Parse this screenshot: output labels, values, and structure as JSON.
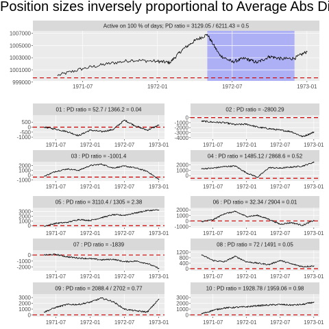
{
  "title": "Position sizes inversely proportional to Average Abs Diff",
  "colors": {
    "panel_bg": "#ebebeb",
    "strip_bg": "#d9d9d9",
    "grid": "#ffffff",
    "line": "#000000",
    "zero_line": "#cc0000",
    "highlight": "#aeb0f5"
  },
  "chart_data": [
    {
      "type": "line",
      "strip": "Active on 100 % of days; PD ratio =  3129.05 / 6211.43 = 0.5",
      "x_ticks": [
        "1971-07",
        "1972-01",
        "1972-07",
        "1973-01"
      ],
      "y_ticks": [
        "999000",
        "1001000",
        "1003000",
        "1005000",
        "1007000"
      ],
      "y_tick_values": [
        999000,
        1001000,
        1003000,
        1005000,
        1007000
      ],
      "ylim": [
        999200,
        1007400
      ],
      "reference_line": 999700,
      "highlight_range": [
        "1972-05",
        "1972-12"
      ],
      "x": [
        "1971-05",
        "1971-07",
        "1971-09",
        "1971-11",
        "1972-01",
        "1972-02",
        "1972-03",
        "1972-04",
        "1972-05",
        "1972-06",
        "1972-07",
        "1972-08",
        "1972-09",
        "1972-10",
        "1972-11",
        "1972-12",
        "1973-01"
      ],
      "values": [
        1000100,
        1001200,
        1002000,
        1002600,
        1002400,
        1002200,
        1004300,
        1005800,
        1006800,
        1003400,
        1002300,
        1002900,
        1002200,
        1003200,
        1002800,
        1002900,
        1004000
      ]
    },
    {
      "type": "line",
      "strip": "01 : PD ratio =  52.7 / 1366.2 = 0.04",
      "x_ticks": [
        "1971-07",
        "1972-01",
        "1972-07",
        "1973-01"
      ],
      "y_ticks": [
        "-1000",
        "-500",
        "0",
        "500"
      ],
      "y_tick_values": [
        -1000,
        -500,
        0,
        500
      ],
      "ylim": [
        -1200,
        1200
      ],
      "reference_line": 0,
      "x": [
        "1971-05",
        "1971-07",
        "1971-09",
        "1971-11",
        "1972-01",
        "1972-03",
        "1972-05",
        "1972-07",
        "1972-09",
        "1972-11",
        "1973-01"
      ],
      "values": [
        0,
        -200,
        -450,
        -850,
        -300,
        -450,
        -250,
        700,
        100,
        -300,
        200
      ]
    },
    {
      "type": "line",
      "strip": "02 : PD ratio =  -2800.29",
      "x_ticks": [
        "1971-07",
        "1972-01",
        "1972-07",
        "1973-01"
      ],
      "y_ticks": [
        "-4000",
        "-3000",
        "-2000",
        "-1000",
        "0"
      ],
      "y_tick_values": [
        -4000,
        -3000,
        -2000,
        -1000,
        0
      ],
      "ylim": [
        -4300,
        500
      ],
      "reference_line": 0,
      "x": [
        "1971-05",
        "1971-07",
        "1971-09",
        "1971-11",
        "1972-01",
        "1972-03",
        "1972-05",
        "1972-07",
        "1972-09",
        "1972-11",
        "1973-01"
      ],
      "values": [
        -700,
        -900,
        -1000,
        -1400,
        -1300,
        -1900,
        -2200,
        -2500,
        -2800,
        -3800,
        -2900
      ]
    },
    {
      "type": "line",
      "strip": "03 : PD ratio =  -1001.4",
      "x_ticks": [
        "1971-07",
        "1972-01",
        "1972-07",
        "1973-01"
      ],
      "y_ticks": [
        "-1000",
        "0",
        "1000",
        "2000"
      ],
      "y_tick_values": [
        -1000,
        0,
        1000,
        2000
      ],
      "ylim": [
        -1200,
        2800
      ],
      "reference_line": -400,
      "x": [
        "1971-05",
        "1971-07",
        "1971-09",
        "1971-11",
        "1972-01",
        "1972-03",
        "1972-05",
        "1972-07",
        "1972-09",
        "1972-11",
        "1973-01"
      ],
      "values": [
        -200,
        800,
        1300,
        1000,
        2000,
        2300,
        1500,
        1900,
        1500,
        800,
        -900
      ]
    },
    {
      "type": "line",
      "strip": "04 : PD ratio =  1485.12 / 2868.6 = 0.52",
      "x_ticks": [
        "1971-07",
        "1972-01",
        "1972-07",
        "1973-01"
      ],
      "y_ticks": [
        "0",
        "1000",
        "2000"
      ],
      "y_tick_values": [
        0,
        1000,
        2000
      ],
      "ylim": [
        -1000,
        2600
      ],
      "reference_line": -500,
      "x": [
        "1971-05",
        "1971-07",
        "1971-09",
        "1971-11",
        "1972-01",
        "1972-03",
        "1972-05",
        "1972-07",
        "1972-09",
        "1972-11",
        "1973-01"
      ],
      "values": [
        1300,
        1400,
        1700,
        1800,
        500,
        -300,
        1500,
        1400,
        1600,
        1800,
        2500
      ]
    },
    {
      "type": "line",
      "strip": "05 : PD ratio =  3110.4 / 1305 = 2.38",
      "x_ticks": [
        "1971-07",
        "1972-01",
        "1972-07",
        "1973-01"
      ],
      "y_ticks": [
        "0",
        "1000",
        "2000",
        "3000"
      ],
      "y_tick_values": [
        0,
        1000,
        2000,
        3000
      ],
      "ylim": [
        -400,
        3800
      ],
      "reference_line": 0,
      "x": [
        "1971-05",
        "1971-07",
        "1971-09",
        "1971-11",
        "1972-01",
        "1972-03",
        "1972-05",
        "1972-07",
        "1972-09",
        "1972-11",
        "1973-01"
      ],
      "values": [
        -100,
        500,
        700,
        1300,
        1100,
        1700,
        2300,
        2200,
        2700,
        3200,
        3300
      ]
    },
    {
      "type": "line",
      "strip": "06 : PD ratio =  32.34 / 2904 = 0.01",
      "x_ticks": [
        "1971-07",
        "1972-01",
        "1972-07",
        "1973-01"
      ],
      "y_ticks": [
        "-1000",
        "0",
        "1000",
        "2000"
      ],
      "y_tick_values": [
        -1000,
        0,
        1000,
        2000
      ],
      "ylim": [
        -1200,
        2400
      ],
      "reference_line": 0,
      "x": [
        "1971-05",
        "1971-07",
        "1971-09",
        "1971-11",
        "1972-01",
        "1972-03",
        "1972-05",
        "1972-07",
        "1972-09",
        "1972-11",
        "1973-01"
      ],
      "values": [
        -100,
        200,
        1300,
        1700,
        800,
        1000,
        300,
        -600,
        -300,
        -800,
        100
      ]
    },
    {
      "type": "line",
      "strip": "07 : PD ratio =  -1839",
      "x_ticks": [
        "1971-07",
        "1972-01",
        "1972-07",
        "1973-01"
      ],
      "y_ticks": [
        "-2000",
        "-1000",
        "0"
      ],
      "y_tick_values": [
        -2000,
        -1000,
        0
      ],
      "ylim": [
        -2600,
        800
      ],
      "reference_line": 0,
      "x": [
        "1971-05",
        "1971-07",
        "1971-09",
        "1971-11",
        "1972-01",
        "1972-03",
        "1972-05",
        "1972-07",
        "1972-09",
        "1972-11",
        "1973-01"
      ],
      "values": [
        0,
        100,
        -300,
        -500,
        -600,
        -800,
        -700,
        -1100,
        -1000,
        -1400,
        -2200
      ]
    },
    {
      "type": "line",
      "strip": "08 : PD ratio =  72 / 1491 = 0.05",
      "x_ticks": [
        "1971-07",
        "1972-01",
        "1972-07",
        "1973-01"
      ],
      "y_ticks": [
        "0",
        "400",
        "800",
        "1200"
      ],
      "y_tick_values": [
        0,
        400,
        800,
        1200
      ],
      "ylim": [
        -150,
        1350
      ],
      "reference_line": 0,
      "x": [
        "1971-05",
        "1971-07",
        "1971-09",
        "1971-11",
        "1972-01",
        "1972-03",
        "1972-05",
        "1972-07",
        "1972-09",
        "1972-11",
        "1973-01"
      ],
      "values": [
        1000,
        600,
        500,
        900,
        500,
        400,
        300,
        600,
        350,
        150,
        200
      ]
    },
    {
      "type": "line",
      "strip": "09 : PD ratio =  2088.4 / 2702 = 0.77",
      "x_ticks": [
        "1971-07",
        "1972-01",
        "1972-07",
        "1973-01"
      ],
      "y_ticks": [
        "0",
        "1000",
        "2000",
        "3000"
      ],
      "y_tick_values": [
        0,
        1000,
        2000,
        3000
      ],
      "ylim": [
        -300,
        3600
      ],
      "reference_line": 0,
      "x": [
        "1971-05",
        "1971-07",
        "1971-09",
        "1971-11",
        "1972-01",
        "1972-03",
        "1972-05",
        "1972-07",
        "1972-09",
        "1972-11",
        "1973-01"
      ],
      "values": [
        500,
        1300,
        1800,
        1800,
        2200,
        2900,
        2300,
        1000,
        700,
        500,
        2700
      ]
    },
    {
      "type": "line",
      "strip": "10 : PD ratio =  1928.78 / 1959.06 = 0.98",
      "x_ticks": [
        "1971-07",
        "1972-01",
        "1972-07",
        "1973-01"
      ],
      "y_ticks": [
        "0",
        "1000",
        "2000",
        "3000"
      ],
      "y_tick_values": [
        0,
        1000,
        2000,
        3000
      ],
      "ylim": [
        -300,
        3600
      ],
      "reference_line": 0,
      "x": [
        "1971-05",
        "1971-07",
        "1971-09",
        "1971-11",
        "1972-01",
        "1972-03",
        "1972-05",
        "1972-07",
        "1972-09",
        "1972-11",
        "1973-01"
      ],
      "values": [
        200,
        800,
        1200,
        1300,
        1400,
        1600,
        1700,
        1800,
        1700,
        1800,
        2200
      ]
    }
  ]
}
